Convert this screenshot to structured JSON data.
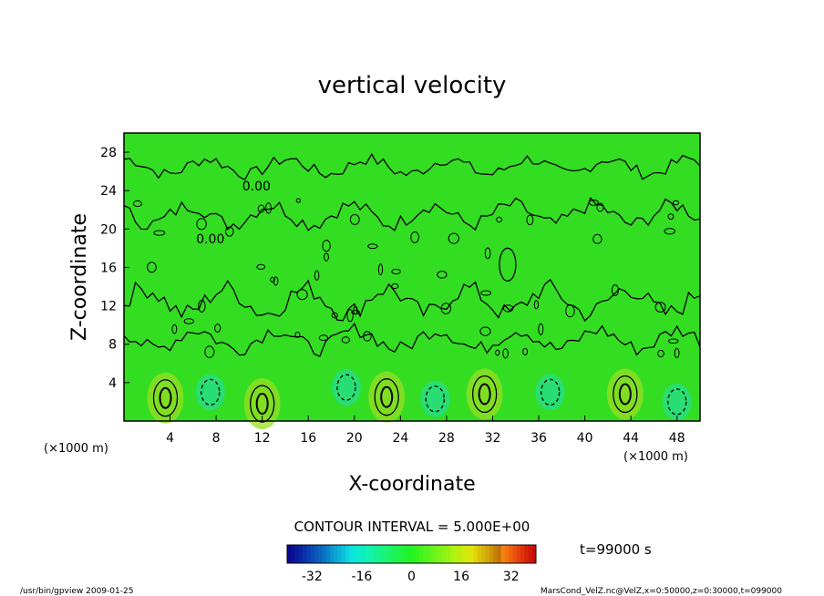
{
  "chart_data": {
    "type": "heatmap",
    "title": "vertical velocity",
    "xlabel": "X-coordinate",
    "ylabel": "Z-coordinate",
    "x_unit": "(×1000 m)",
    "y_unit": "(×1000 m)",
    "xlim": [
      0,
      50
    ],
    "ylim": [
      0,
      30
    ],
    "x_ticks": [
      4,
      8,
      12,
      16,
      20,
      24,
      28,
      32,
      36,
      40,
      44,
      48
    ],
    "y_ticks": [
      4,
      8,
      12,
      16,
      20,
      24,
      28
    ],
    "contour_interval_text": "CONTOUR INTERVAL = 5.000E+00",
    "contour_labels": [
      {
        "text": "0.00",
        "x": 11.5,
        "y": 24
      },
      {
        "text": "0.00",
        "x": 7.5,
        "y": 18.5
      }
    ],
    "colorbar": {
      "range": [
        -40,
        40
      ],
      "ticks": [
        -32,
        -16,
        0,
        16,
        32
      ]
    },
    "time_label": "t=99000  s",
    "updrafts": [
      {
        "x": 3.6,
        "z": 2.4,
        "amp": 12
      },
      {
        "x": 22.8,
        "z": 2.5,
        "amp": 11
      },
      {
        "x": 31.3,
        "z": 2.8,
        "amp": 12
      },
      {
        "x": 43.5,
        "z": 2.8,
        "amp": 6
      },
      {
        "x": 12.0,
        "z": 1.8,
        "amp": 4
      }
    ],
    "downdrafts": [
      {
        "x": 7.5,
        "z": 3.0,
        "amp": -6
      },
      {
        "x": 19.3,
        "z": 3.5,
        "amp": -8
      },
      {
        "x": 27.0,
        "z": 2.3,
        "amp": -5
      },
      {
        "x": 37.0,
        "z": 3.0,
        "amp": -5
      },
      {
        "x": 48.0,
        "z": 2.0,
        "amp": -7
      }
    ]
  },
  "footer": {
    "left": "/usr/bin/gpview   2009-01-25",
    "right": "MarsCond_VelZ.nc@VelZ,x=0:50000,z=0:30000,t=099000"
  },
  "colors": {
    "field_base": "#33dd22",
    "updraft": "#99dd22",
    "downdraft": "#22ddaa"
  }
}
